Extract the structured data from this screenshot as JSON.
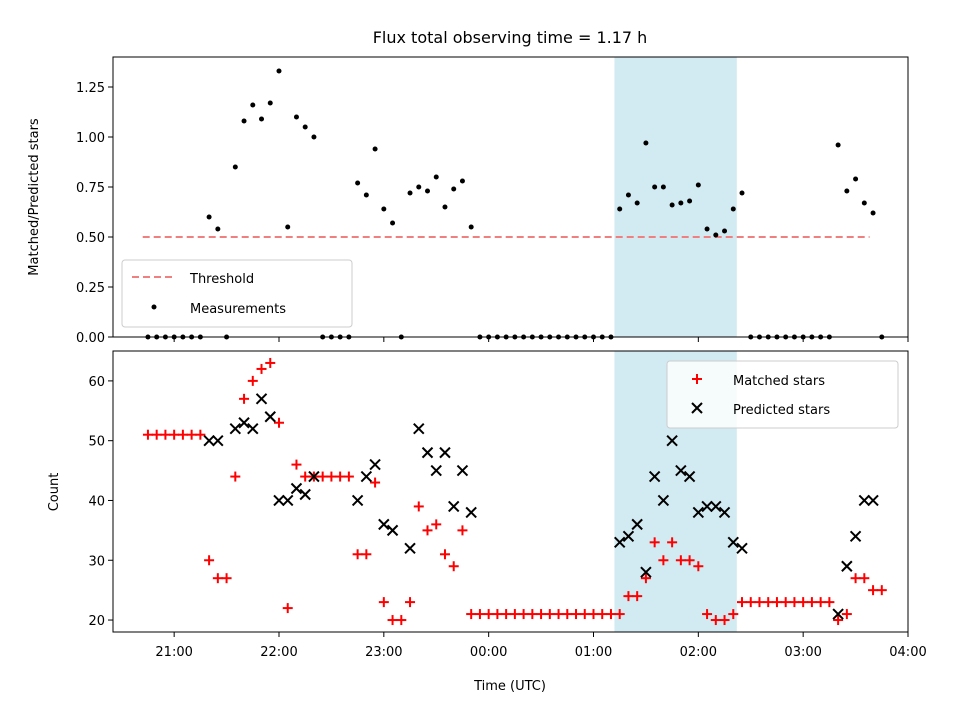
{
  "chart_data": [
    {
      "type": "scatter",
      "title": "Flux total observing time = 1.17 h",
      "xlabel": "",
      "ylabel": "Matched/Predicted stars",
      "ylim": [
        0,
        1.4
      ],
      "xlim": [
        "20:25",
        "04:00"
      ],
      "yticks": [
        0.0,
        0.25,
        0.5,
        0.75,
        1.0,
        1.25
      ],
      "ytick_labels": [
        "0.00",
        "0.25",
        "0.50",
        "0.75",
        "1.00",
        "1.25"
      ],
      "shaded_span": [
        "01:12",
        "02:22"
      ],
      "shade_color": "#add8e6",
      "legend_position": "lower-left",
      "threshold": {
        "name": "Threshold",
        "value": 0.5,
        "x_range": [
          "20:42",
          "03:38"
        ],
        "color": "#f08080",
        "style": "dashed"
      },
      "measurements": {
        "name": "Measurements",
        "color": "#000000",
        "points": [
          [
            "20:45",
            0
          ],
          [
            "20:50",
            0
          ],
          [
            "20:55",
            0
          ],
          [
            "21:00",
            0
          ],
          [
            "21:05",
            0
          ],
          [
            "21:10",
            0
          ],
          [
            "21:15",
            0
          ],
          [
            "21:20",
            0.6
          ],
          [
            "21:25",
            0.54
          ],
          [
            "21:30",
            0
          ],
          [
            "21:35",
            0.85
          ],
          [
            "21:40",
            1.08
          ],
          [
            "21:45",
            1.16
          ],
          [
            "21:50",
            1.09
          ],
          [
            "21:55",
            1.17
          ],
          [
            "22:00",
            1.33
          ],
          [
            "22:05",
            0.55
          ],
          [
            "22:10",
            1.1
          ],
          [
            "22:15",
            1.05
          ],
          [
            "22:20",
            1.0
          ],
          [
            "22:25",
            0
          ],
          [
            "22:30",
            0
          ],
          [
            "22:35",
            0
          ],
          [
            "22:40",
            0
          ],
          [
            "22:45",
            0.77
          ],
          [
            "22:50",
            0.71
          ],
          [
            "22:55",
            0.94
          ],
          [
            "23:00",
            0.64
          ],
          [
            "23:05",
            0.57
          ],
          [
            "23:10",
            0
          ],
          [
            "23:15",
            0.72
          ],
          [
            "23:20",
            0.75
          ],
          [
            "23:25",
            0.73
          ],
          [
            "23:30",
            0.8
          ],
          [
            "23:35",
            0.65
          ],
          [
            "23:40",
            0.74
          ],
          [
            "23:45",
            0.78
          ],
          [
            "23:50",
            0.55
          ],
          [
            "23:55",
            0
          ],
          [
            "00:00",
            0
          ],
          [
            "00:05",
            0
          ],
          [
            "00:10",
            0
          ],
          [
            "00:15",
            0
          ],
          [
            "00:20",
            0
          ],
          [
            "00:25",
            0
          ],
          [
            "00:30",
            0
          ],
          [
            "00:35",
            0
          ],
          [
            "00:40",
            0
          ],
          [
            "00:45",
            0
          ],
          [
            "00:50",
            0
          ],
          [
            "00:55",
            0
          ],
          [
            "01:00",
            0
          ],
          [
            "01:05",
            0
          ],
          [
            "01:10",
            0
          ],
          [
            "01:15",
            0.64
          ],
          [
            "01:20",
            0.71
          ],
          [
            "01:25",
            0.67
          ],
          [
            "01:30",
            0.97
          ],
          [
            "01:35",
            0.75
          ],
          [
            "01:40",
            0.75
          ],
          [
            "01:45",
            0.66
          ],
          [
            "01:50",
            0.67
          ],
          [
            "01:55",
            0.68
          ],
          [
            "02:00",
            0.76
          ],
          [
            "02:05",
            0.54
          ],
          [
            "02:10",
            0.51
          ],
          [
            "02:15",
            0.53
          ],
          [
            "02:20",
            0.64
          ],
          [
            "02:25",
            0.72
          ],
          [
            "02:30",
            0
          ],
          [
            "02:35",
            0
          ],
          [
            "02:40",
            0
          ],
          [
            "02:45",
            0
          ],
          [
            "02:50",
            0
          ],
          [
            "02:55",
            0
          ],
          [
            "03:00",
            0
          ],
          [
            "03:05",
            0
          ],
          [
            "03:10",
            0
          ],
          [
            "03:15",
            0
          ],
          [
            "03:20",
            0.96
          ],
          [
            "03:25",
            0.73
          ],
          [
            "03:30",
            0.79
          ],
          [
            "03:35",
            0.67
          ],
          [
            "03:40",
            0.62
          ],
          [
            "03:45",
            0
          ]
        ]
      }
    },
    {
      "type": "scatter",
      "title": "",
      "xlabel": "Time (UTC)",
      "ylabel": "Count",
      "ylim": [
        18,
        65
      ],
      "xlim": [
        "20:25",
        "04:00"
      ],
      "yticks": [
        20,
        30,
        40,
        50,
        60
      ],
      "ytick_labels": [
        "20",
        "30",
        "40",
        "50",
        "60"
      ],
      "xticks": [
        "21:00",
        "22:00",
        "23:00",
        "00:00",
        "01:00",
        "02:00",
        "03:00",
        "04:00"
      ],
      "shaded_span": [
        "01:12",
        "02:22"
      ],
      "shade_color": "#add8e6",
      "legend_position": "upper-right",
      "series": [
        {
          "name": "Matched stars",
          "marker": "+",
          "color": "#ff0000",
          "points": [
            [
              "20:45",
              51
            ],
            [
              "20:50",
              51
            ],
            [
              "20:55",
              51
            ],
            [
              "21:00",
              51
            ],
            [
              "21:05",
              51
            ],
            [
              "21:10",
              51
            ],
            [
              "21:15",
              51
            ],
            [
              "21:20",
              30
            ],
            [
              "21:25",
              27
            ],
            [
              "21:30",
              27
            ],
            [
              "21:35",
              44
            ],
            [
              "21:40",
              57
            ],
            [
              "21:45",
              60
            ],
            [
              "21:50",
              62
            ],
            [
              "21:55",
              63
            ],
            [
              "22:00",
              53
            ],
            [
              "22:05",
              22
            ],
            [
              "22:10",
              46
            ],
            [
              "22:15",
              44
            ],
            [
              "22:20",
              44
            ],
            [
              "22:25",
              44
            ],
            [
              "22:30",
              44
            ],
            [
              "22:35",
              44
            ],
            [
              "22:40",
              44
            ],
            [
              "22:45",
              31
            ],
            [
              "22:50",
              31
            ],
            [
              "22:55",
              43
            ],
            [
              "23:00",
              23
            ],
            [
              "23:05",
              20
            ],
            [
              "23:10",
              20
            ],
            [
              "23:15",
              23
            ],
            [
              "23:20",
              39
            ],
            [
              "23:25",
              35
            ],
            [
              "23:30",
              36
            ],
            [
              "23:35",
              31
            ],
            [
              "23:40",
              29
            ],
            [
              "23:45",
              35
            ],
            [
              "23:50",
              21
            ],
            [
              "23:55",
              21
            ],
            [
              "00:00",
              21
            ],
            [
              "00:05",
              21
            ],
            [
              "00:10",
              21
            ],
            [
              "00:15",
              21
            ],
            [
              "00:20",
              21
            ],
            [
              "00:25",
              21
            ],
            [
              "00:30",
              21
            ],
            [
              "00:35",
              21
            ],
            [
              "00:40",
              21
            ],
            [
              "00:45",
              21
            ],
            [
              "00:50",
              21
            ],
            [
              "00:55",
              21
            ],
            [
              "01:00",
              21
            ],
            [
              "01:05",
              21
            ],
            [
              "01:10",
              21
            ],
            [
              "01:15",
              21
            ],
            [
              "01:20",
              24
            ],
            [
              "01:25",
              24
            ],
            [
              "01:30",
              27
            ],
            [
              "01:35",
              33
            ],
            [
              "01:40",
              30
            ],
            [
              "01:45",
              33
            ],
            [
              "01:50",
              30
            ],
            [
              "01:55",
              30
            ],
            [
              "02:00",
              29
            ],
            [
              "02:05",
              21
            ],
            [
              "02:10",
              20
            ],
            [
              "02:15",
              20
            ],
            [
              "02:20",
              21
            ],
            [
              "02:25",
              23
            ],
            [
              "02:30",
              23
            ],
            [
              "02:35",
              23
            ],
            [
              "02:40",
              23
            ],
            [
              "02:45",
              23
            ],
            [
              "02:50",
              23
            ],
            [
              "02:55",
              23
            ],
            [
              "03:00",
              23
            ],
            [
              "03:05",
              23
            ],
            [
              "03:10",
              23
            ],
            [
              "03:15",
              23
            ],
            [
              "03:20",
              20
            ],
            [
              "03:25",
              21
            ],
            [
              "03:30",
              27
            ],
            [
              "03:35",
              27
            ],
            [
              "03:40",
              25
            ],
            [
              "03:45",
              25
            ]
          ]
        },
        {
          "name": "Predicted stars",
          "marker": "x",
          "color": "#000000",
          "points": [
            [
              "21:20",
              50
            ],
            [
              "21:25",
              50
            ],
            [
              "21:35",
              52
            ],
            [
              "21:40",
              53
            ],
            [
              "21:45",
              52
            ],
            [
              "21:50",
              57
            ],
            [
              "21:55",
              54
            ],
            [
              "22:00",
              40
            ],
            [
              "22:05",
              40
            ],
            [
              "22:10",
              42
            ],
            [
              "22:15",
              41
            ],
            [
              "22:20",
              44
            ],
            [
              "22:45",
              40
            ],
            [
              "22:50",
              44
            ],
            [
              "22:55",
              46
            ],
            [
              "23:00",
              36
            ],
            [
              "23:05",
              35
            ],
            [
              "23:15",
              32
            ],
            [
              "23:20",
              52
            ],
            [
              "23:25",
              48
            ],
            [
              "23:30",
              45
            ],
            [
              "23:35",
              48
            ],
            [
              "23:40",
              39
            ],
            [
              "23:45",
              45
            ],
            [
              "23:50",
              38
            ],
            [
              "01:15",
              33
            ],
            [
              "01:20",
              34
            ],
            [
              "01:25",
              36
            ],
            [
              "01:30",
              28
            ],
            [
              "01:35",
              44
            ],
            [
              "01:40",
              40
            ],
            [
              "01:45",
              50
            ],
            [
              "01:50",
              45
            ],
            [
              "01:55",
              44
            ],
            [
              "02:00",
              38
            ],
            [
              "02:05",
              39
            ],
            [
              "02:10",
              39
            ],
            [
              "02:15",
              38
            ],
            [
              "02:20",
              33
            ],
            [
              "02:25",
              32
            ],
            [
              "03:20",
              21
            ],
            [
              "03:25",
              29
            ],
            [
              "03:30",
              34
            ],
            [
              "03:35",
              40
            ],
            [
              "03:40",
              40
            ]
          ]
        }
      ]
    }
  ]
}
